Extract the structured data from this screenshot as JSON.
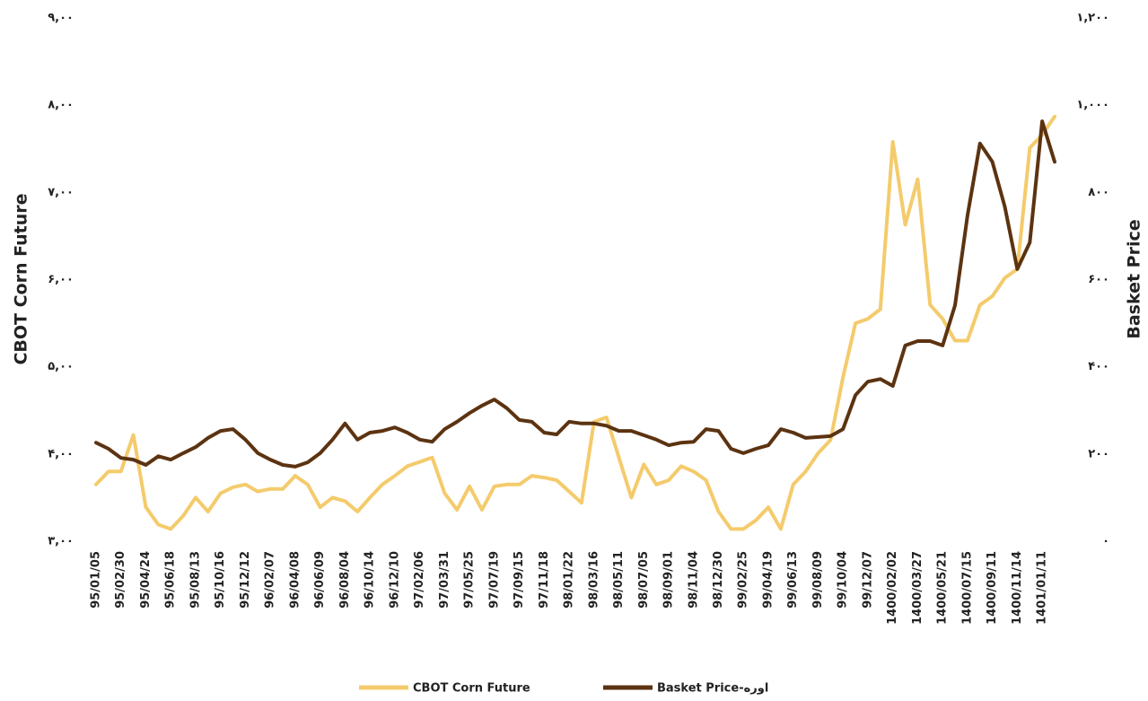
{
  "chart_data": {
    "type": "line",
    "y_label": "CBOT Corn Future",
    "y2_label": "Basket Price",
    "categories": [
      "95/01/05",
      null,
      "95/02/30",
      null,
      "95/04/24",
      null,
      "95/06/18",
      null,
      "95/08/13",
      null,
      "95/10/16",
      null,
      "95/12/12",
      null,
      "96/02/07",
      null,
      "96/04/08",
      null,
      "96/06/09",
      null,
      "96/08/04",
      null,
      "96/10/14",
      null,
      "96/12/10",
      null,
      "97/02/06",
      null,
      "97/03/31",
      null,
      "97/05/25",
      null,
      "97/07/19",
      null,
      "97/09/15",
      null,
      "97/11/18",
      null,
      "98/01/22",
      null,
      "98/03/16",
      null,
      "98/05/11",
      null,
      "98/07/05",
      null,
      "98/09/01",
      null,
      "98/11/04",
      null,
      "98/12/30",
      null,
      "99/02/25",
      null,
      "99/04/19",
      null,
      "99/06/13",
      null,
      "99/08/09",
      null,
      "99/10/04",
      null,
      "99/12/07",
      null,
      "1400/02/02",
      null,
      "1400/03/27",
      null,
      "1400/05/21",
      null,
      "1400/07/15",
      null,
      "1400/09/11",
      null,
      "1400/11/14",
      null,
      "1401/01/11",
      null
    ],
    "series": [
      {
        "name": "CBOT Corn Future",
        "color": "#f4cb6c",
        "axis": "y",
        "values": [
          3.65,
          3.8,
          3.8,
          4.22,
          3.39,
          3.19,
          3.14,
          3.29,
          3.5,
          3.34,
          3.55,
          3.62,
          3.65,
          3.57,
          3.6,
          3.6,
          3.75,
          3.65,
          3.39,
          3.5,
          3.46,
          3.34,
          3.5,
          3.65,
          3.75,
          3.86,
          3.91,
          3.96,
          3.55,
          3.36,
          3.63,
          3.36,
          3.63,
          3.65,
          3.65,
          3.75,
          3.73,
          3.7,
          3.57,
          3.44,
          4.37,
          4.42,
          3.96,
          3.5,
          3.88,
          3.65,
          3.7,
          3.86,
          3.8,
          3.7,
          3.34,
          3.14,
          3.14,
          3.24,
          3.39,
          3.14,
          3.65,
          3.8,
          4.01,
          4.16,
          4.88,
          5.5,
          5.55,
          5.66,
          7.58,
          6.63,
          7.15,
          5.71,
          5.55,
          5.3,
          5.3,
          5.71,
          5.81,
          6.02,
          6.12,
          7.51,
          7.66,
          7.87
        ]
      },
      {
        "name": "Basket Price-اوره",
        "color": "#5c3311",
        "axis": "y2",
        "values": [
          226,
          212,
          191,
          187,
          175,
          195,
          187,
          202,
          216,
          237,
          253,
          257,
          233,
          202,
          187,
          175,
          171,
          181,
          202,
          233,
          270,
          233,
          249,
          253,
          261,
          249,
          233,
          228,
          257,
          274,
          294,
          311,
          325,
          305,
          278,
          274,
          249,
          245,
          274,
          270,
          270,
          265,
          253,
          253,
          243,
          233,
          220,
          226,
          228,
          257,
          253,
          212,
          202,
          212,
          220,
          257,
          249,
          237,
          239,
          241,
          257,
          335,
          366,
          372,
          356,
          449,
          459,
          459,
          449,
          541,
          747,
          912,
          870,
          767,
          624,
          685,
          963,
          870
        ]
      }
    ],
    "ylim": [
      3,
      9
    ],
    "yticks": [
      {
        "value": 3,
        "label": "۳,۰۰"
      },
      {
        "value": 4,
        "label": "۴,۰۰"
      },
      {
        "value": 5,
        "label": "۵,۰۰"
      },
      {
        "value": 6,
        "label": "۶,۰۰"
      },
      {
        "value": 7,
        "label": "۷,۰۰"
      },
      {
        "value": 8,
        "label": "۸,۰۰"
      },
      {
        "value": 9,
        "label": "۹,۰۰"
      }
    ],
    "y2lim": [
      0,
      1200
    ],
    "y2ticks": [
      {
        "value": 0,
        "label": "۰"
      },
      {
        "value": 200,
        "label": "۲۰۰"
      },
      {
        "value": 400,
        "label": "۴۰۰"
      },
      {
        "value": 600,
        "label": "۶۰۰"
      },
      {
        "value": 800,
        "label": "۸۰۰"
      },
      {
        "value": 1000,
        "label": "۱,۰۰۰"
      },
      {
        "value": 1200,
        "label": "۱,۲۰۰"
      }
    ],
    "grid": false,
    "legend": "bottom"
  }
}
